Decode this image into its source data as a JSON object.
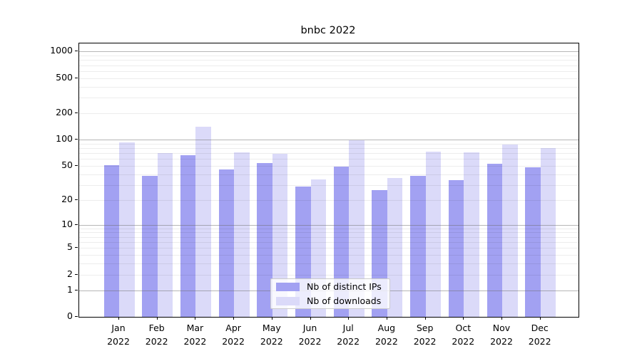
{
  "chart_data": {
    "type": "bar",
    "title": "bnbc 2022",
    "yscale": "log1p",
    "ylim": [
      0,
      1233
    ],
    "y_ticks": [
      0,
      1,
      2,
      5,
      10,
      20,
      50,
      100,
      200,
      500,
      1000
    ],
    "grid": "on",
    "grid_on_top": true,
    "categories": [
      "Jan",
      "Feb",
      "Mar",
      "Apr",
      "May",
      "Jun",
      "Jul",
      "Aug",
      "Sep",
      "Oct",
      "Nov",
      "Dec"
    ],
    "year_label": "2022",
    "series": [
      {
        "name": "Nb of distinct IPs",
        "color": "#a2a1f2",
        "values": [
          51,
          38,
          66,
          45,
          54,
          29,
          49,
          26,
          38,
          34,
          53,
          48
        ]
      },
      {
        "name": "Nb of downloads",
        "color": "#dbdaf9",
        "values": [
          92,
          70,
          140,
          72,
          69,
          35,
          99,
          36,
          73,
          71,
          88,
          80
        ]
      }
    ],
    "legend_position": "lower center",
    "xlabel": "",
    "ylabel": ""
  },
  "colors": {
    "axis": "#000000",
    "major_grid": "#6e6e6e",
    "minor_grid": "#e8e8e8",
    "legend_border": "#cccccc"
  }
}
